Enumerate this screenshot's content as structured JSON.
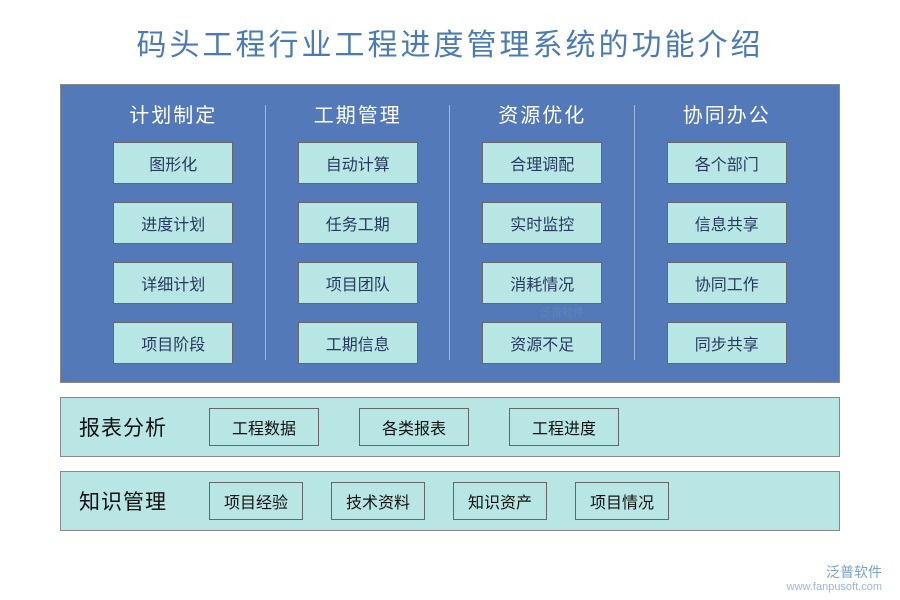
{
  "title": "码头工程行业工程进度管理系统的功能介绍",
  "colors": {
    "title_color": "#4a7bb5",
    "panel_bg": "#5379b8",
    "box_bg": "#b8e6e4",
    "header_text": "#ffffff",
    "box_text": "#263a5f",
    "border": "#666666"
  },
  "columns": [
    {
      "header": "计划制定",
      "items": [
        "图形化",
        "进度计划",
        "详细计划",
        "项目阶段"
      ]
    },
    {
      "header": "工期管理",
      "items": [
        "自动计算",
        "任务工期",
        "项目团队",
        "工期信息"
      ]
    },
    {
      "header": "资源优化",
      "items": [
        "合理调配",
        "实时监控",
        "消耗情况",
        "资源不足"
      ]
    },
    {
      "header": "协同办公",
      "items": [
        "各个部门",
        "信息共享",
        "协同工作",
        "同步共享"
      ]
    }
  ],
  "rows": [
    {
      "label": "报表分析",
      "items": [
        "工程数据",
        "各类报表",
        "工程进度"
      ]
    },
    {
      "label": "知识管理",
      "items": [
        "项目经验",
        "技术资料",
        "知识资产",
        "项目情况"
      ]
    }
  ],
  "watermark": {
    "brand": "泛普软件",
    "url": "www.fanpusoft.com"
  }
}
